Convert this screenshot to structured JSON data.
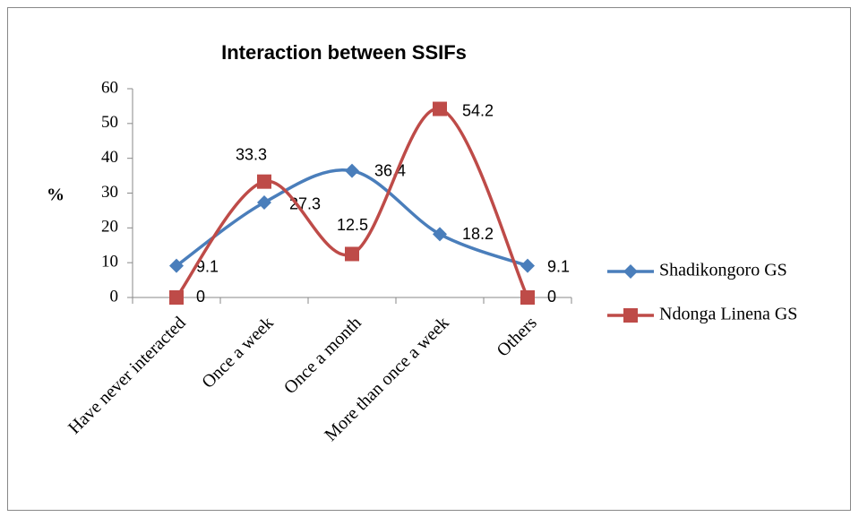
{
  "chart_data": {
    "type": "line",
    "title": "Interaction between SSIFs",
    "y_label": "%",
    "categories": [
      "Have never interacted",
      "Once a week",
      "Once a month",
      "More than once a week",
      "Others"
    ],
    "series": [
      {
        "name": "Shadikongoro GS",
        "color": "#4a7ebb",
        "marker": "diamond",
        "values": [
          9.1,
          27.3,
          36.4,
          18.2,
          9.1
        ]
      },
      {
        "name": "Ndonga Linena GS",
        "color": "#be4b48",
        "marker": "square",
        "values": [
          0,
          33.3,
          12.5,
          54.2,
          0
        ]
      }
    ],
    "ylim": [
      0,
      60
    ],
    "yticks": [
      0,
      10,
      20,
      30,
      40,
      50,
      60
    ],
    "smooth": true,
    "legend": "right"
  }
}
